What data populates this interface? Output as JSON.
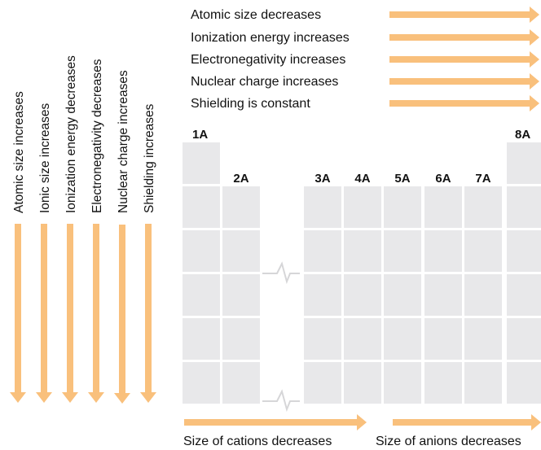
{
  "horizontal_trends": [
    "Atomic size decreases",
    "Ionization energy increases",
    "Electronegativity increases",
    "Nuclear charge increases",
    "Shielding is constant"
  ],
  "vertical_trends": [
    "Atomic size increases",
    "Ionic size increases",
    "Ionization energy decreases",
    "Electronegativity decreases",
    "Nuclear charge increases",
    "Shielding increases"
  ],
  "groups": {
    "g1": "1A",
    "g2": "2A",
    "g3": "3A",
    "g4": "4A",
    "g5": "5A",
    "g6": "6A",
    "g7": "7A",
    "g8": "8A"
  },
  "bottom_trends": {
    "cations": "Size of cations decreases",
    "anions": "Size of anions decreases"
  },
  "colors": {
    "arrow": "#f9c07c",
    "cell": "#e8e8ea"
  }
}
